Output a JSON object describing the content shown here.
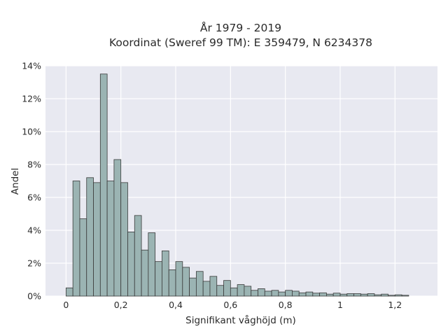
{
  "chart_data": {
    "type": "bar",
    "title_line1": "År 1979 - 2019",
    "title_line2": "Koordinat (Sweref 99 TM): E 359479, N 6234378",
    "xlabel": "Signifikant våghöjd (m)",
    "ylabel": "Andel",
    "xlim": [
      -0.075,
      1.355
    ],
    "ylim": [
      0,
      14
    ],
    "x_ticks": [
      0,
      0.2,
      0.4,
      0.6,
      0.8,
      1,
      1.2
    ],
    "x_tick_labels": [
      "0",
      "0,2",
      "0,4",
      "0,6",
      "0,8",
      "1",
      "1,2"
    ],
    "y_ticks": [
      0,
      2,
      4,
      6,
      8,
      10,
      12,
      14
    ],
    "y_tick_labels": [
      "0%",
      "2%",
      "4%",
      "6%",
      "8%",
      "10%",
      "12%",
      "14%"
    ],
    "grid": true,
    "bin_width": 0.025,
    "bin_start": 0.0,
    "values": [
      0.5,
      7.0,
      4.7,
      7.2,
      6.9,
      13.5,
      7.0,
      8.3,
      6.9,
      3.9,
      4.9,
      2.8,
      3.85,
      2.1,
      2.75,
      1.6,
      2.1,
      1.75,
      1.1,
      1.5,
      0.9,
      1.2,
      0.65,
      0.95,
      0.5,
      0.7,
      0.6,
      0.35,
      0.45,
      0.3,
      0.35,
      0.25,
      0.35,
      0.3,
      0.2,
      0.25,
      0.18,
      0.2,
      0.12,
      0.18,
      0.12,
      0.15,
      0.15,
      0.12,
      0.15,
      0.08,
      0.12,
      0.05,
      0.08,
      0.05
    ]
  },
  "colors": {
    "plot_bg": "#e8e9f1",
    "grid": "#ffffff",
    "bar_fill": "#9bb4b3",
    "bar_stroke": "#3a3a3a",
    "text": "#2a2a2a"
  }
}
